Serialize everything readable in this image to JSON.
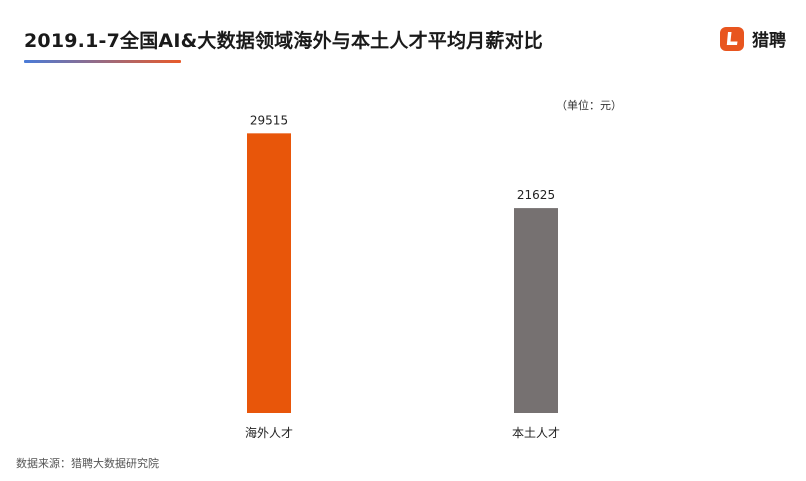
{
  "header": {
    "title": "2019.1-7全国AI&大数据领域海外与本土人才平均月薪对比"
  },
  "brand": {
    "name": "猎聘",
    "icon": "liepin-logo-icon",
    "color": "#e8551f"
  },
  "chart_data": {
    "type": "bar",
    "unit_note": "（单位：元）",
    "categories": [
      "海外人才",
      "本土人才"
    ],
    "values": [
      29515,
      21625
    ],
    "colors": [
      "#e8560a",
      "#767171"
    ],
    "title": "",
    "xlabel": "",
    "ylabel": "",
    "ylim": [
      0,
      30500
    ],
    "grid": false,
    "legend": "none"
  },
  "footer": {
    "source": "数据来源：猎聘大数据研究院"
  }
}
